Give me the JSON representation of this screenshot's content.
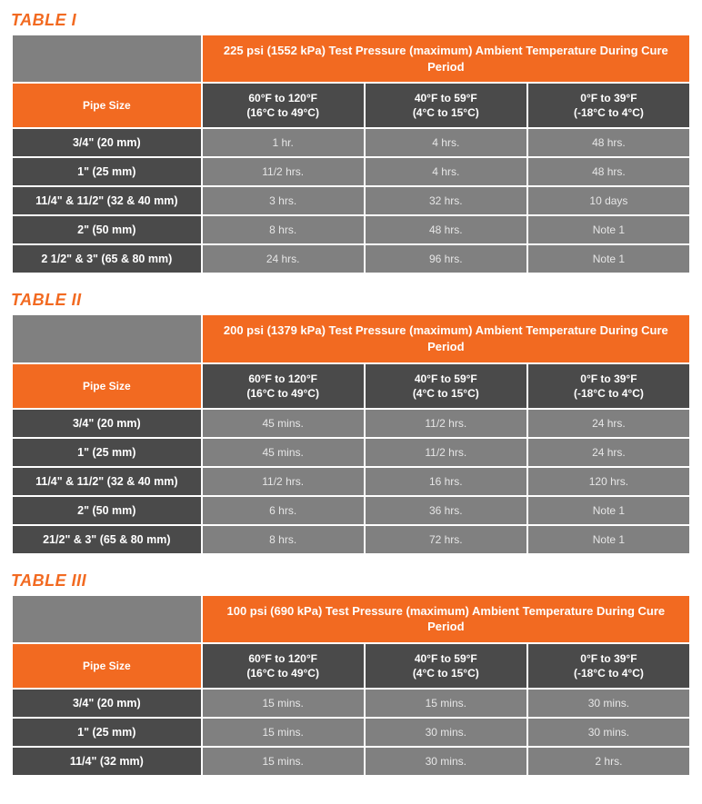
{
  "colors": {
    "orange": "#f26a21",
    "grayDark": "#4a4a4a",
    "grayMid": "#808080",
    "white": "#ffffff",
    "textLight": "#e6e6e6"
  },
  "columnWidths": [
    "28%",
    "24%",
    "24%",
    "24%"
  ],
  "tables": [
    {
      "title": "TABLE I",
      "mainHeader": "225 psi (1552 kPa) Test Pressure (maximum) Ambient Temperature During Cure Period",
      "pipeSizeLabel": "Pipe Size",
      "colHeaders": [
        {
          "l1": "60°F to 120°F",
          "l2": "(16°C to 49°C)"
        },
        {
          "l1": "40°F to 59°F",
          "l2": "(4°C to 15°C)"
        },
        {
          "l1": "0°F to 39°F",
          "l2": "(-18°C to 4°C)"
        }
      ],
      "rows": [
        {
          "size": "3/4\" (20 mm)",
          "c": [
            "1 hr.",
            "4 hrs.",
            "48 hrs."
          ]
        },
        {
          "size": "1\" (25 mm)",
          "c": [
            "11/2 hrs.",
            "4 hrs.",
            "48 hrs."
          ]
        },
        {
          "size": "11/4\" & 11/2\" (32 & 40 mm)",
          "c": [
            "3 hrs.",
            "32 hrs.",
            "10 days"
          ]
        },
        {
          "size": "2\" (50 mm)",
          "c": [
            "8 hrs.",
            "48 hrs.",
            "Note 1"
          ]
        },
        {
          "size": "2 1/2\" & 3\" (65 & 80 mm)",
          "c": [
            "24 hrs.",
            "96 hrs.",
            "Note 1"
          ]
        }
      ]
    },
    {
      "title": "TABLE II",
      "mainHeader": "200 psi (1379 kPa) Test Pressure (maximum) Ambient Temperature During Cure Period",
      "pipeSizeLabel": "Pipe Size",
      "colHeaders": [
        {
          "l1": "60°F to 120°F",
          "l2": "(16°C to 49°C)"
        },
        {
          "l1": "40°F to 59°F",
          "l2": "(4°C to 15°C)"
        },
        {
          "l1": "0°F to 39°F",
          "l2": "(-18°C to 4°C)"
        }
      ],
      "rows": [
        {
          "size": "3/4\" (20 mm)",
          "c": [
            "45 mins.",
            "11/2 hrs.",
            "24 hrs."
          ]
        },
        {
          "size": "1\" (25 mm)",
          "c": [
            "45 mins.",
            "11/2 hrs.",
            "24 hrs."
          ]
        },
        {
          "size": "11/4\" & 11/2\" (32 & 40 mm)",
          "c": [
            "11/2  hrs.",
            "16 hrs.",
            "120 hrs."
          ]
        },
        {
          "size": "2\" (50 mm)",
          "c": [
            "6 hrs.",
            "36 hrs.",
            "Note 1"
          ]
        },
        {
          "size": "21/2\" & 3\" (65 & 80 mm)",
          "c": [
            "8 hrs.",
            "72 hrs.",
            "Note 1"
          ]
        }
      ]
    },
    {
      "title": "TABLE III",
      "mainHeader": "100 psi (690 kPa) Test Pressure (maximum) Ambient Temperature During Cure Period",
      "pipeSizeLabel": "Pipe Size",
      "colHeaders": [
        {
          "l1": "60°F to 120°F",
          "l2": "(16°C to 49°C)"
        },
        {
          "l1": "40°F to 59°F",
          "l2": "(4°C to 15°C)"
        },
        {
          "l1": "0°F to 39°F",
          "l2": "(-18°C to 4°C)"
        }
      ],
      "rows": [
        {
          "size": "3/4\" (20 mm)",
          "c": [
            "15 mins.",
            "15 mins.",
            "30 mins."
          ]
        },
        {
          "size": "1\" (25 mm)",
          "c": [
            "15 mins.",
            "30 mins.",
            "30 mins."
          ]
        },
        {
          "size": "11/4\" (32 mm)",
          "c": [
            "15 mins.",
            "30 mins.",
            "2 hrs."
          ]
        }
      ]
    }
  ]
}
